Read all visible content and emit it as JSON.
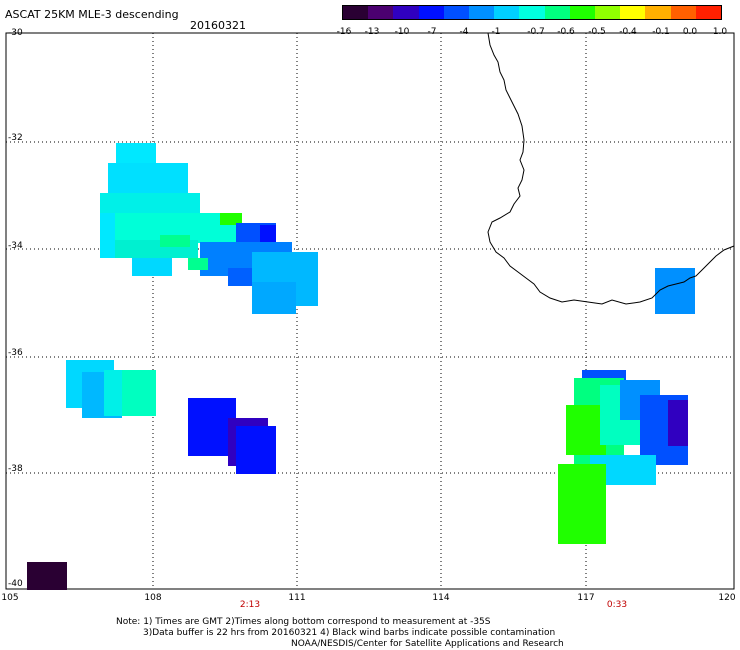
{
  "title": "ASCAT 25KM MLE-3 descending",
  "date": "20160321",
  "colorbar": {
    "ticks": [
      "-16",
      "-13",
      "-10",
      "-7",
      "-4",
      "-1",
      "-0.7",
      "-0.6",
      "-0.5",
      "-0.4",
      "-0.1",
      "0.0",
      "1.0"
    ],
    "colors": [
      "#2a0033",
      "#4b0070",
      "#3000c0",
      "#0010ff",
      "#0050ff",
      "#0090ff",
      "#00d0ff",
      "#00ffe0",
      "#00ff80",
      "#20ff00",
      "#90ff00",
      "#ffff00",
      "#ffb000",
      "#ff6000",
      "#ff2000"
    ]
  },
  "lat_labels": [
    "-30",
    "-32",
    "-34",
    "-36",
    "-38",
    "-40"
  ],
  "lon_labels": [
    "105",
    "108",
    "111",
    "114",
    "117",
    "120"
  ],
  "pass_times": [
    "2:13",
    "0:33"
  ],
  "notes": {
    "line1": "Note: 1) Times are GMT 2)Times along bottom correspond to measurement at -35S",
    "line2": "3)Data buffer is 22 hrs from 20160321 4) Black wind barbs indicate possible contamination",
    "line3": "NOAA/NESDIS/Center for Satellite Applications and Research"
  }
}
